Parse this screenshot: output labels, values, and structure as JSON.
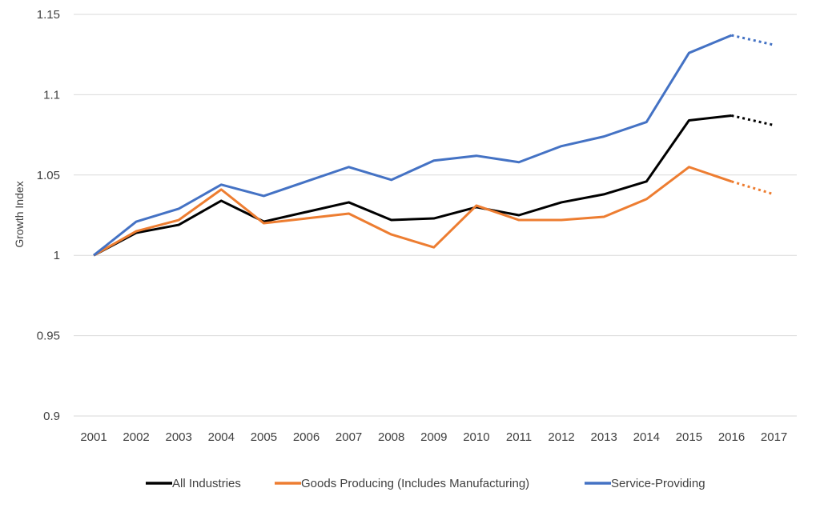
{
  "chart_data": {
    "type": "line",
    "title": "",
    "xlabel": "",
    "ylabel": "Growth Index",
    "ylim": [
      0.9,
      1.15
    ],
    "yticks": [
      "0.9",
      "0.95",
      "1",
      "1.05",
      "1.1",
      "1.15"
    ],
    "grid": "horizontal",
    "legend_position": "bottom",
    "categories": [
      "2001",
      "2002",
      "2003",
      "2004",
      "2005",
      "2006",
      "2007",
      "2008",
      "2009",
      "2010",
      "2011",
      "2012",
      "2013",
      "2014",
      "2015",
      "2016",
      "2017"
    ],
    "projected_from_category": "2016",
    "series": [
      {
        "name": "All Industries",
        "color": "#000000",
        "values": [
          1.0,
          1.014,
          1.019,
          1.034,
          1.021,
          1.027,
          1.033,
          1.022,
          1.023,
          1.03,
          1.025,
          1.033,
          1.038,
          1.046,
          1.084,
          1.087,
          1.081
        ]
      },
      {
        "name": "Goods Producing (Includes Manufacturing)",
        "color": "#ed7d31",
        "values": [
          1.0,
          1.015,
          1.022,
          1.041,
          1.02,
          1.023,
          1.026,
          1.013,
          1.005,
          1.031,
          1.022,
          1.022,
          1.024,
          1.035,
          1.055,
          1.046,
          1.038
        ]
      },
      {
        "name": "Service-Providing",
        "color": "#4472c4",
        "values": [
          1.0,
          1.021,
          1.029,
          1.044,
          1.037,
          1.046,
          1.055,
          1.047,
          1.059,
          1.062,
          1.058,
          1.068,
          1.074,
          1.083,
          1.126,
          1.137,
          1.131
        ]
      }
    ]
  }
}
